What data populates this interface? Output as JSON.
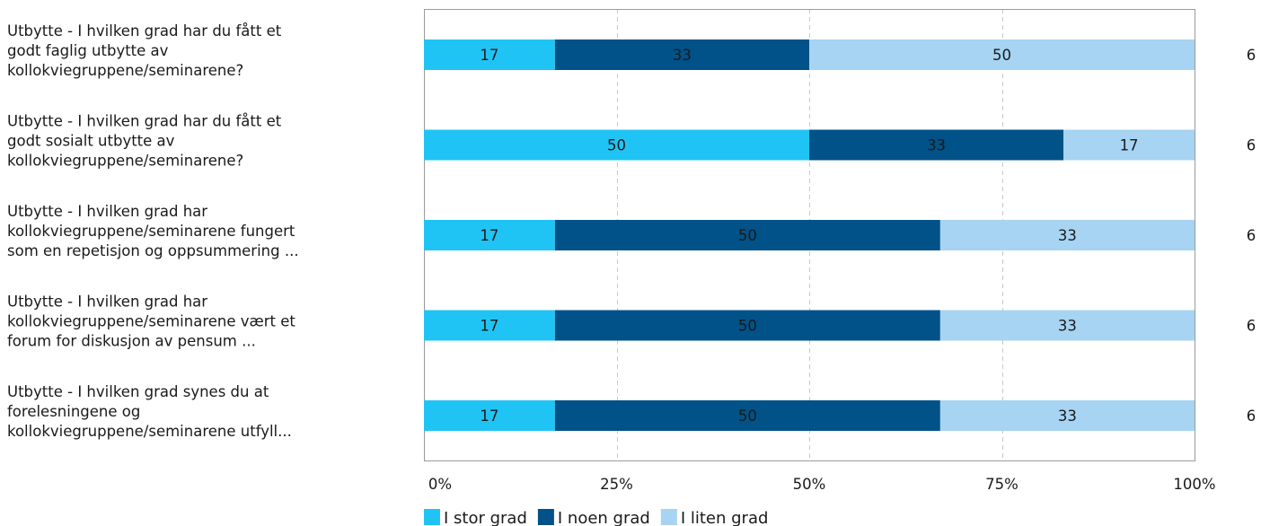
{
  "chart_data": {
    "type": "bar",
    "orientation": "horizontal",
    "stacked": true,
    "percent_scale": true,
    "categories": [
      [
        "Utbytte - I hvilken grad har du fått et",
        "godt faglig utbytte av",
        "kollokviegruppene/seminarene?"
      ],
      [
        "Utbytte - I hvilken grad har du fått et",
        "godt sosialt utbytte av",
        "kollokviegruppene/seminarene?"
      ],
      [
        "Utbytte - I hvilken grad har",
        "kollokviegruppene/seminarene fungert",
        "som en repetisjon og oppsummering ..."
      ],
      [
        "Utbytte - I hvilken grad har",
        "kollokviegruppene/seminarene vært et",
        "forum for diskusjon av pensum ..."
      ],
      [
        "Utbytte - I hvilken grad synes du at",
        "forelesningene og",
        "kollokviegruppene/seminarene utfyll..."
      ]
    ],
    "series": [
      {
        "name": "I stor grad",
        "color": "#20c4f4",
        "values": [
          17,
          50,
          17,
          17,
          17
        ]
      },
      {
        "name": "I noen grad",
        "color": "#005288",
        "values": [
          33,
          33,
          50,
          50,
          50
        ]
      },
      {
        "name": "I liten grad",
        "color": "#a6d4f2",
        "values": [
          50,
          17,
          33,
          33,
          33
        ]
      }
    ],
    "n_values": [
      "6",
      "6",
      "6",
      "6",
      "6"
    ],
    "xlim": [
      0,
      100
    ],
    "xticks": [
      0,
      25,
      50,
      75,
      100
    ],
    "xtick_labels": [
      "0%",
      "25%",
      "50%",
      "75%",
      "100%"
    ],
    "grid": true,
    "legend_position": "bottom"
  }
}
